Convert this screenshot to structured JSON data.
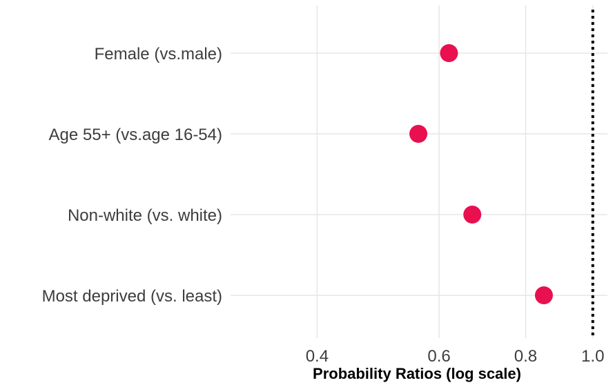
{
  "chart_data": {
    "type": "scatter",
    "title": "",
    "xlabel": "Probability Ratios (log scale)",
    "ylabel": "",
    "x_scale": "log",
    "xlim": [
      0.3,
      1.05
    ],
    "x_ticks": [
      0.4,
      0.6,
      0.8,
      1.0
    ],
    "x_tick_labels": [
      "0.4",
      "0.6",
      "0.8",
      "1.0"
    ],
    "reference_line": {
      "x": 1.0,
      "style": "dotted",
      "color": "#000000"
    },
    "grid": true,
    "legend": "none",
    "point_color": "#e8104f",
    "grid_color": "#e6e6e6",
    "categories": [
      "Female (vs.male)",
      "Age 55+ (vs.age 16-54)",
      "Non-white (vs. white)",
      "Most deprived (vs. least)"
    ],
    "values": [
      0.62,
      0.56,
      0.67,
      0.85
    ]
  }
}
